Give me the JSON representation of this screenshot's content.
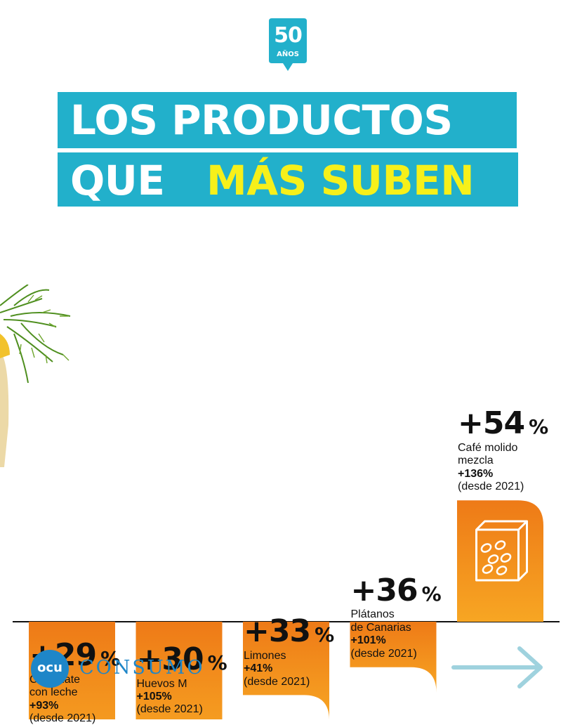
{
  "badge": {
    "number": "50",
    "label": "AÑOS"
  },
  "title": {
    "line1": "LOS PRODUCTOS",
    "line2_word1": "QUE",
    "line2_word2": "MÁS SUBEN"
  },
  "colors": {
    "title_band": "#22b0cb",
    "highlight": "#f6f01a",
    "bar_top": "#ee7a17",
    "bar_bottom": "#f7a623",
    "brand": "#1e86c8",
    "arrow": "#9fd2de"
  },
  "chart_data": {
    "type": "bar",
    "categories": [
      "Chocolate con leche",
      "Huevos M",
      "Limones",
      "Plátanos de Canarias",
      "Café molido mezcla"
    ],
    "values": [
      29,
      30,
      33,
      36,
      54
    ],
    "value_labels": [
      "+29",
      "+30",
      "+33",
      "+36",
      "+54"
    ],
    "unit": "%",
    "name_lines": [
      [
        "Chocolate",
        "con leche"
      ],
      [
        "Huevos M"
      ],
      [
        "Limones"
      ],
      [
        "Plátanos",
        "de Canarias"
      ],
      [
        "Café molido",
        "mezcla"
      ]
    ],
    "since_2021": [
      "+93%",
      "+105%",
      "+41%",
      "+101%",
      "+136%"
    ],
    "since_note": "(desde 2021)",
    "icons": [
      "chocolate-bar-icon",
      "egg-carton-icon",
      "lemon-icon",
      "banana-icon",
      "coffee-box-icon"
    ]
  },
  "footer": {
    "logo": "ocu",
    "brand": "CONSUMO"
  }
}
